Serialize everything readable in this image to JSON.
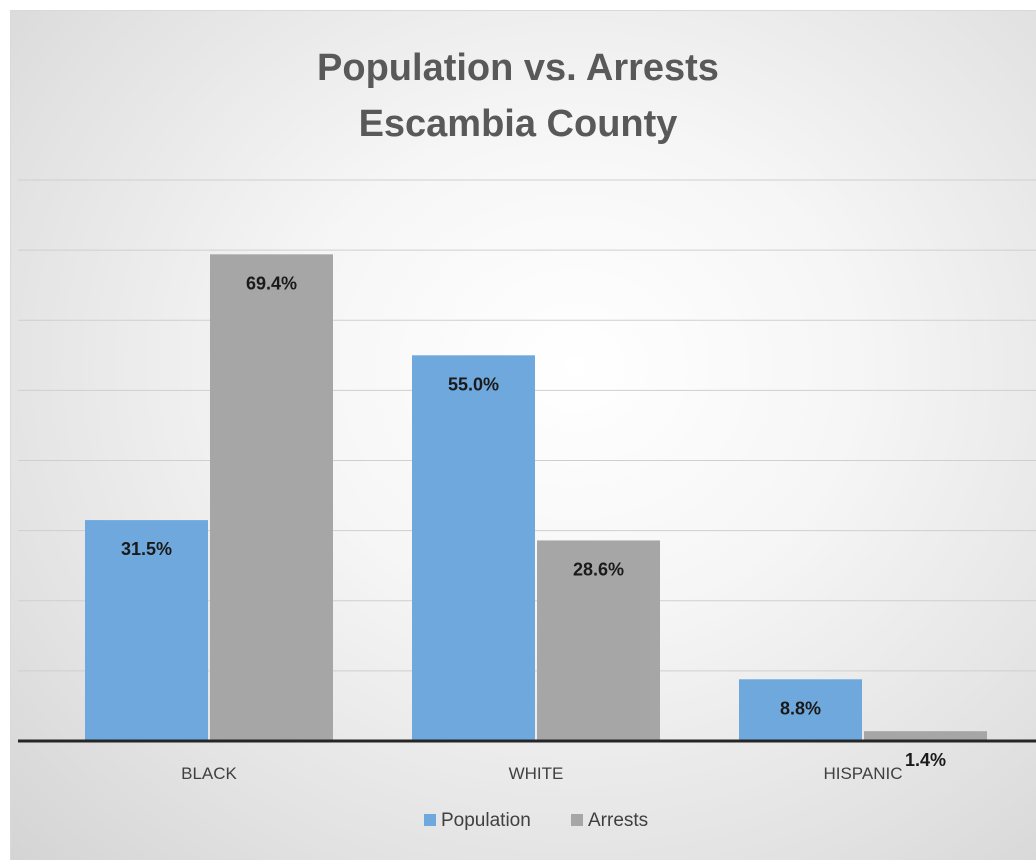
{
  "chart_data": {
    "type": "bar",
    "title_line1": "Population vs. Arrests",
    "title_line2": "Escambia County",
    "categories": [
      "BLACK",
      "WHITE",
      "HISPANIC"
    ],
    "series": [
      {
        "name": "Population",
        "values": [
          31.5,
          55.0,
          8.8
        ],
        "labels": [
          "31.5%",
          "55.0%",
          "8.8%"
        ],
        "color": "#6fa8dc"
      },
      {
        "name": "Arrests",
        "values": [
          69.4,
          28.6,
          1.4
        ],
        "labels": [
          "69.4%",
          "28.6%",
          "1.4%"
        ],
        "color": "#a6a6a6"
      }
    ],
    "ylim": [
      0,
      80
    ],
    "grid": true,
    "y_axis_labels_shown": false,
    "legend_position": "bottom"
  }
}
